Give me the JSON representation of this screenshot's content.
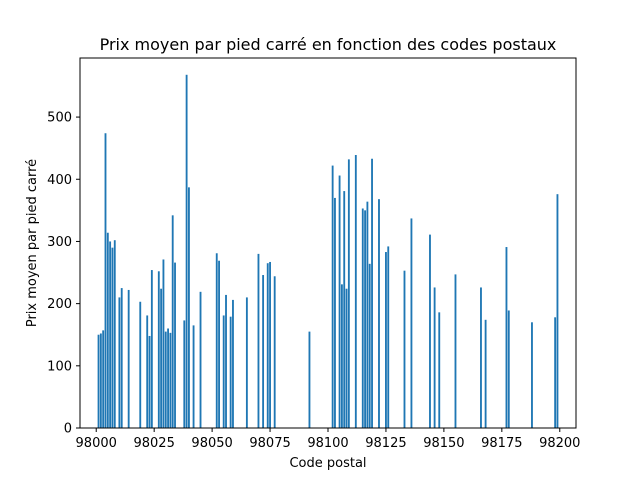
{
  "chart_data": {
    "type": "bar",
    "title": "Prix moyen par pied carré en fonction des codes postaux",
    "xlabel": "Code postal",
    "ylabel": "Prix moyen par pied carré",
    "xlim": [
      97993,
      98207
    ],
    "ylim": [
      0,
      595
    ],
    "grid": false,
    "legend": "none",
    "bar_color": "#1f77b4",
    "x_ticks": [
      98000,
      98025,
      98050,
      98075,
      98100,
      98125,
      98150,
      98175,
      98200
    ],
    "y_ticks": [
      0,
      100,
      200,
      300,
      400,
      500
    ],
    "x": [
      98001,
      98002,
      98003,
      98004,
      98005,
      98006,
      98007,
      98008,
      98010,
      98011,
      98014,
      98019,
      98022,
      98023,
      98024,
      98027,
      98028,
      98029,
      98030,
      98031,
      98032,
      98033,
      98034,
      98038,
      98039,
      98040,
      98042,
      98045,
      98052,
      98053,
      98055,
      98056,
      98058,
      98059,
      98065,
      98070,
      98072,
      98074,
      98075,
      98077,
      98092,
      98102,
      98103,
      98105,
      98106,
      98107,
      98108,
      98109,
      98112,
      98115,
      98116,
      98117,
      98118,
      98119,
      98122,
      98125,
      98126,
      98133,
      98136,
      98144,
      98146,
      98148,
      98155,
      98166,
      98168,
      98177,
      98178,
      98188,
      98198,
      98199
    ],
    "values": [
      150,
      152,
      157,
      474,
      314,
      300,
      290,
      302,
      210,
      225,
      222,
      203,
      181,
      148,
      254,
      252,
      224,
      271,
      155,
      160,
      153,
      342,
      266,
      173,
      568,
      387,
      165,
      219,
      281,
      269,
      181,
      214,
      179,
      206,
      210,
      280,
      246,
      265,
      267,
      244,
      155,
      422,
      370,
      406,
      231,
      381,
      224,
      432,
      439,
      353,
      350,
      364,
      264,
      433,
      368,
      283,
      292,
      253,
      337,
      311,
      226,
      186,
      247,
      226,
      174,
      291,
      189,
      170,
      178,
      376
    ]
  }
}
